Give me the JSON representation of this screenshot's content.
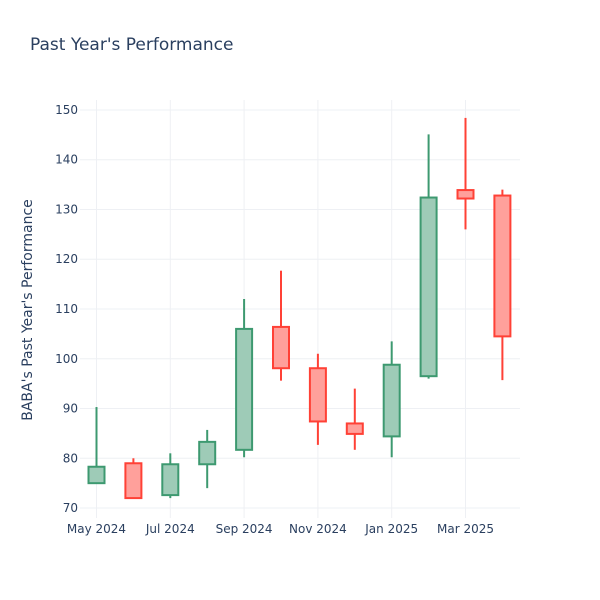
{
  "chart_data": {
    "type": "candlestick",
    "title": "Past Year's Performance",
    "xlabel": "",
    "ylabel": "BABA's Past Year's Performance",
    "ylim": [
      68,
      152
    ],
    "yticks": [
      70,
      80,
      90,
      100,
      110,
      120,
      130,
      140,
      150
    ],
    "xticks": [
      {
        "label": "May 2024",
        "month_index": 0
      },
      {
        "label": "Jul 2024",
        "month_index": 2
      },
      {
        "label": "Sep 2024",
        "month_index": 4
      },
      {
        "label": "Nov 2024",
        "month_index": 6
      },
      {
        "label": "Jan 2025",
        "month_index": 8
      },
      {
        "label": "Mar 2025",
        "month_index": 10
      }
    ],
    "grid": true,
    "increasing_color": "#3d9970",
    "increasing_fill": "#9ecbb7",
    "decreasing_color": "#ff4136",
    "decreasing_fill": "#ffa09b",
    "series": [
      {
        "month": "May 2024",
        "open": 75.0,
        "high": 90.3,
        "low": 75.0,
        "close": 78.3
      },
      {
        "month": "Jun 2024",
        "open": 79.0,
        "high": 80.0,
        "low": 72.0,
        "close": 72.0
      },
      {
        "month": "Jul 2024",
        "open": 72.6,
        "high": 81.0,
        "low": 72.0,
        "close": 78.8
      },
      {
        "month": "Aug 2024",
        "open": 78.8,
        "high": 85.7,
        "low": 74.0,
        "close": 83.3
      },
      {
        "month": "Sep 2024",
        "open": 81.7,
        "high": 112.0,
        "low": 80.2,
        "close": 106.0
      },
      {
        "month": "Oct 2024",
        "open": 106.4,
        "high": 117.7,
        "low": 95.6,
        "close": 98.1
      },
      {
        "month": "Nov 2024",
        "open": 98.1,
        "high": 101.0,
        "low": 82.7,
        "close": 87.4
      },
      {
        "month": "Dec 2024",
        "open": 87.0,
        "high": 94.0,
        "low": 81.7,
        "close": 84.9
      },
      {
        "month": "Jan 2025",
        "open": 84.4,
        "high": 103.5,
        "low": 80.2,
        "close": 98.8
      },
      {
        "month": "Feb 2025",
        "open": 96.5,
        "high": 145.1,
        "low": 96.0,
        "close": 132.4
      },
      {
        "month": "Mar 2025",
        "open": 133.9,
        "high": 148.4,
        "low": 126.0,
        "close": 132.2
      },
      {
        "month": "Apr 2025",
        "open": 132.8,
        "high": 134.0,
        "low": 95.7,
        "close": 104.5
      }
    ]
  }
}
